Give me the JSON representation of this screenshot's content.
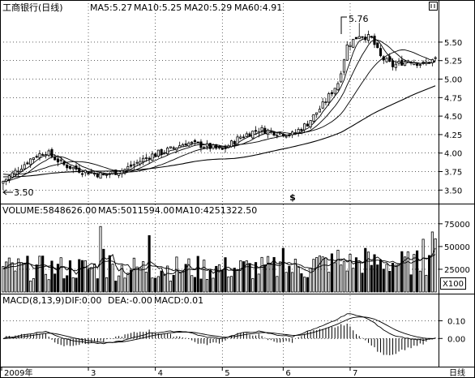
{
  "header": {
    "stock_name": "工商银行(日线)",
    "ma5": "MA5:5.27",
    "ma10": "MA10:5.25",
    "ma20": "MA20:5.29",
    "ma60": "MA60:4.91"
  },
  "volume_header": {
    "volume": "VOLUME:5848626.00",
    "ma5": "MA5:5011594.00",
    "ma10": "MA10:4251322.50"
  },
  "macd_header": {
    "params": "MACD(8,13,9)",
    "dif": "DIF:0.00",
    "dea": "DEA:-0.00",
    "macd": "MACD:0.01"
  },
  "annotations": {
    "high_label": "5.76",
    "low_label": "3.50",
    "marker": "$"
  },
  "volume_unit": "X100",
  "colors": {
    "candle_up": "#000000",
    "candle_down": "#000000",
    "ma_line": "#000000",
    "grid": "#000000",
    "background": "#ffffff"
  },
  "chart_data": [
    {
      "type": "candlestick",
      "title": "工商银行(日线)",
      "y_ticks": [
        3.5,
        3.75,
        4.0,
        4.25,
        4.5,
        4.75,
        5.0,
        5.25,
        5.5
      ],
      "ylim": [
        3.35,
        5.85
      ],
      "x_labels": [
        "2009年",
        "3",
        "4",
        "5",
        "6",
        "7"
      ],
      "high_point": 5.76,
      "low_point": 3.5,
      "ma_last": {
        "MA5": 5.27,
        "MA10": 5.25,
        "MA20": 5.29,
        "MA60": 4.91
      },
      "close_anchors": [
        [
          0,
          3.62
        ],
        [
          10,
          3.95
        ],
        [
          14,
          4.02
        ],
        [
          20,
          3.84
        ],
        [
          26,
          3.76
        ],
        [
          33,
          3.7
        ],
        [
          40,
          3.78
        ],
        [
          48,
          3.96
        ],
        [
          55,
          4.05
        ],
        [
          60,
          4.14
        ],
        [
          66,
          4.1
        ],
        [
          72,
          4.04
        ],
        [
          78,
          4.22
        ],
        [
          84,
          4.32
        ],
        [
          90,
          4.28
        ],
        [
          95,
          4.25
        ],
        [
          100,
          4.4
        ],
        [
          105,
          4.65
        ],
        [
          110,
          4.95
        ],
        [
          113,
          5.45
        ],
        [
          117,
          5.6
        ],
        [
          121,
          5.55
        ],
        [
          124,
          5.3
        ],
        [
          128,
          5.18
        ],
        [
          133,
          5.26
        ],
        [
          138,
          5.2
        ],
        [
          142,
          5.27
        ]
      ]
    },
    {
      "type": "bar",
      "title": "VOLUME",
      "y_ticks": [
        25000,
        50000,
        75000
      ],
      "ylim": [
        0,
        82000
      ],
      "unit": "X100",
      "ma_last": {
        "MA5": 5011594.0,
        "MA10": 4251322.5
      },
      "last_value": 58486.26,
      "spikes": [
        [
          32,
          72000
        ],
        [
          48,
          62000
        ],
        [
          33,
          47000
        ],
        [
          35,
          40000
        ],
        [
          92,
          48000
        ],
        [
          110,
          46000
        ],
        [
          119,
          48000
        ],
        [
          138,
          58000
        ],
        [
          141,
          66000
        ]
      ]
    },
    {
      "type": "line",
      "title": "MACD(8,13,9)",
      "y_ticks": [
        0.0,
        0.1
      ],
      "ylim": [
        -0.15,
        0.18
      ],
      "last": {
        "DIF": 0.0,
        "DEA": -0.0,
        "MACD": 0.01
      },
      "dif_anchors": [
        [
          0,
          0.0
        ],
        [
          10,
          0.03
        ],
        [
          14,
          0.04
        ],
        [
          20,
          0.0
        ],
        [
          26,
          -0.02
        ],
        [
          33,
          -0.03
        ],
        [
          40,
          -0.01
        ],
        [
          48,
          0.03
        ],
        [
          55,
          0.04
        ],
        [
          60,
          0.04
        ],
        [
          66,
          0.01
        ],
        [
          72,
          0.0
        ],
        [
          78,
          0.03
        ],
        [
          84,
          0.04
        ],
        [
          90,
          0.02
        ],
        [
          95,
          0.01
        ],
        [
          100,
          0.04
        ],
        [
          105,
          0.07
        ],
        [
          110,
          0.11
        ],
        [
          113,
          0.14
        ],
        [
          117,
          0.13
        ],
        [
          121,
          0.1
        ],
        [
          124,
          0.06
        ],
        [
          128,
          0.02
        ],
        [
          133,
          0.0
        ],
        [
          138,
          -0.01
        ],
        [
          142,
          0.0
        ]
      ]
    }
  ]
}
